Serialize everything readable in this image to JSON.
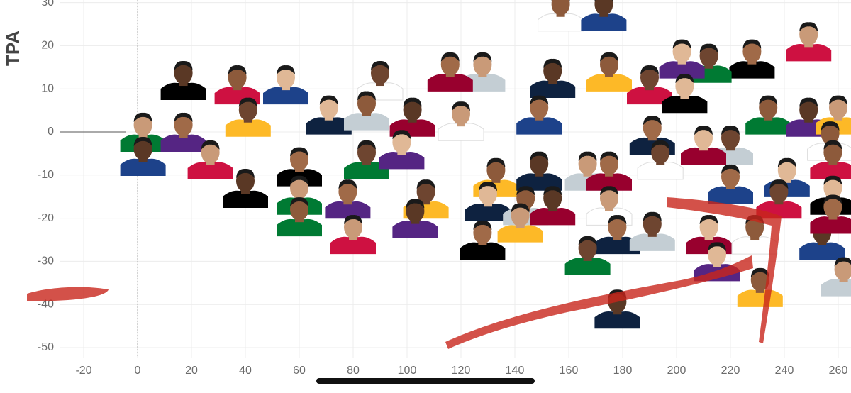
{
  "chart_data": {
    "type": "scatter",
    "y_label": "TPA",
    "xlim": [
      -24,
      265
    ],
    "ylim": [
      -53,
      31
    ],
    "xticks": [
      -20,
      0,
      20,
      40,
      60,
      80,
      100,
      120,
      140,
      160,
      180,
      200,
      220,
      240,
      260
    ],
    "yticks": [
      -50,
      -40,
      -30,
      -20,
      -10,
      0,
      10,
      20,
      30
    ],
    "grid": true,
    "x": [
      157,
      173,
      249,
      228,
      212,
      202,
      175,
      154,
      128,
      116,
      90,
      55,
      37,
      17,
      2,
      17,
      41,
      71,
      85,
      102,
      120,
      149,
      190,
      203,
      234,
      249,
      260,
      191,
      220,
      210,
      257,
      2,
      27,
      60,
      85,
      98,
      133,
      149,
      167,
      175,
      194,
      241,
      258,
      40,
      60,
      78,
      107,
      130,
      144,
      154,
      175,
      220,
      238,
      258,
      60,
      103,
      142,
      178,
      191,
      212,
      229,
      254,
      80,
      128,
      167,
      215,
      231,
      178,
      262,
      258
    ],
    "y": [
      28,
      28,
      21,
      17,
      16,
      17,
      14,
      12.5,
      14,
      14,
      12,
      11,
      11,
      12,
      0,
      0,
      3.5,
      4,
      5,
      3.5,
      2.6,
      4,
      11,
      9,
      4,
      3.5,
      4,
      -0.7,
      -3,
      -3,
      -2,
      -5.6,
      -6.4,
      -8,
      -6.4,
      -4,
      -10.5,
      -9,
      -9,
      -9,
      -6.4,
      -10.5,
      -6.4,
      -13,
      -14.6,
      -15.5,
      -15.5,
      -16,
      -17,
      -17,
      -17,
      -12,
      -15.5,
      -14.6,
      -19.6,
      -20,
      -21,
      -23.7,
      -23,
      -23.7,
      -23.7,
      -25,
      -23.7,
      -25,
      -28.6,
      -30,
      -36,
      -41,
      -33.5,
      -19
    ]
  }
}
